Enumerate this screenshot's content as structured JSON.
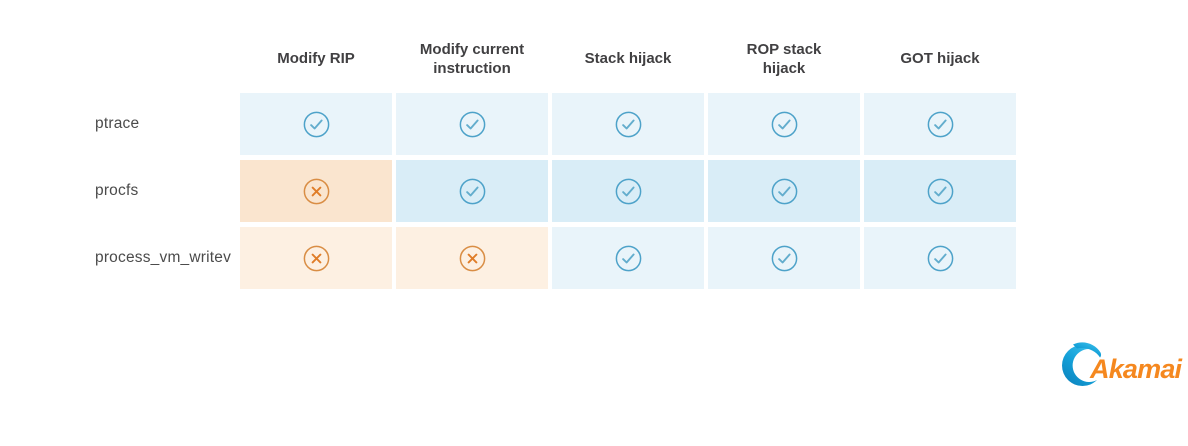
{
  "table": {
    "columns": [
      "Modify RIP",
      "Modify current instruction",
      "Stack hijack",
      "ROP stack hijack",
      "GOT hijack"
    ],
    "rows": [
      {
        "label": "ptrace",
        "cells": [
          "check",
          "check",
          "check",
          "check",
          "check"
        ]
      },
      {
        "label": "procfs",
        "cells": [
          "cross",
          "check",
          "check",
          "check",
          "check"
        ]
      },
      {
        "label": "process_vm_writev",
        "cells": [
          "cross",
          "cross",
          "check",
          "check",
          "check"
        ]
      }
    ]
  },
  "icons": {
    "check": "check-circle-icon",
    "cross": "x-circle-icon"
  },
  "colors": {
    "check_icon": "#4da2c9",
    "cross_icon": "#d98d44",
    "cell_check_bg": "#e9f4fa",
    "cell_check_bg_alt": "#d9edf7",
    "cell_cross_bg": "#fdf0e2",
    "cell_cross_bg_alt": "#fae5cf",
    "header_text": "#414042",
    "row_label_text": "#4b4b4b",
    "logo_blue": "#14a0d8",
    "logo_orange": "#f5881f"
  },
  "logo": {
    "text": "Akamai"
  }
}
